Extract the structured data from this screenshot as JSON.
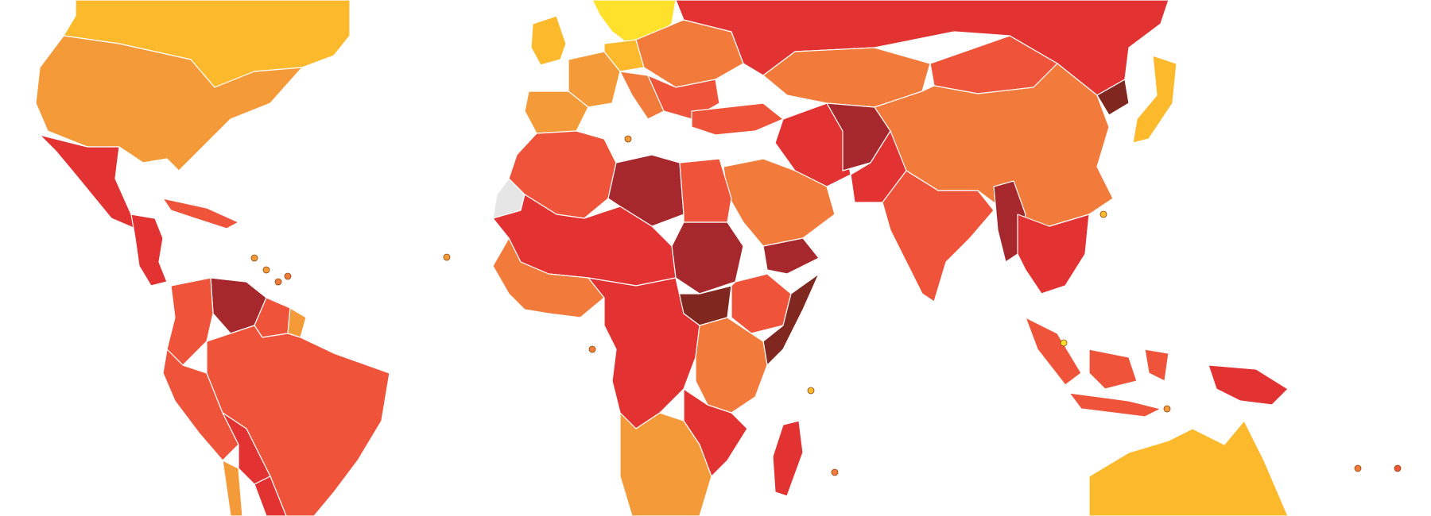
{
  "map": {
    "palette": {
      "very_clean": "#FFE02A",
      "clean": "#FCB92B",
      "fairly_clean": "#F59A38",
      "moderate": "#F27A3B",
      "corrupt": "#EF5339",
      "highly_corrupt": "#E23232",
      "very_highly_corrupt": "#A6282C",
      "most_corrupt": "#80281F",
      "no_data": "#E6E6E6"
    },
    "regions": [
      {
        "id": "canada",
        "band": "clean"
      },
      {
        "id": "usa",
        "band": "fairly_clean"
      },
      {
        "id": "mexico",
        "band": "highly_corrupt"
      },
      {
        "id": "central-america",
        "band": "highly_corrupt"
      },
      {
        "id": "cuba-caribbean",
        "band": "corrupt"
      },
      {
        "id": "venezuela",
        "band": "very_highly_corrupt"
      },
      {
        "id": "colombia",
        "band": "corrupt"
      },
      {
        "id": "guyana-suriname",
        "band": "corrupt"
      },
      {
        "id": "french-guiana",
        "band": "fairly_clean"
      },
      {
        "id": "peru",
        "band": "corrupt"
      },
      {
        "id": "brazil",
        "band": "corrupt"
      },
      {
        "id": "bolivia",
        "band": "highly_corrupt"
      },
      {
        "id": "paraguay",
        "band": "highly_corrupt"
      },
      {
        "id": "chile",
        "band": "fairly_clean"
      },
      {
        "id": "uk-ireland",
        "band": "clean"
      },
      {
        "id": "scandinavia",
        "band": "very_clean"
      },
      {
        "id": "western-europe",
        "band": "fairly_clean"
      },
      {
        "id": "germany",
        "band": "clean"
      },
      {
        "id": "iberia",
        "band": "fairly_clean"
      },
      {
        "id": "italy",
        "band": "moderate"
      },
      {
        "id": "eastern-europe",
        "band": "moderate"
      },
      {
        "id": "balkans",
        "band": "corrupt"
      },
      {
        "id": "russia",
        "band": "highly_corrupt"
      },
      {
        "id": "turkey",
        "band": "corrupt"
      },
      {
        "id": "kazakhstan",
        "band": "moderate"
      },
      {
        "id": "mongolia",
        "band": "corrupt"
      },
      {
        "id": "china",
        "band": "moderate"
      },
      {
        "id": "korea-north",
        "band": "most_corrupt"
      },
      {
        "id": "japan",
        "band": "clean"
      },
      {
        "id": "iran",
        "band": "highly_corrupt"
      },
      {
        "id": "afghanistan",
        "band": "very_highly_corrupt"
      },
      {
        "id": "pakistan",
        "band": "highly_corrupt"
      },
      {
        "id": "india",
        "band": "corrupt"
      },
      {
        "id": "myanmar",
        "band": "very_highly_corrupt"
      },
      {
        "id": "southeast-asia",
        "band": "highly_corrupt"
      },
      {
        "id": "indonesia",
        "band": "corrupt"
      },
      {
        "id": "papua-new-guinea",
        "band": "highly_corrupt"
      },
      {
        "id": "saudi-arabia",
        "band": "moderate"
      },
      {
        "id": "yemen",
        "band": "very_highly_corrupt"
      },
      {
        "id": "north-africa",
        "band": "corrupt"
      },
      {
        "id": "western-sahara",
        "band": "no_data"
      },
      {
        "id": "libya",
        "band": "very_highly_corrupt"
      },
      {
        "id": "egypt",
        "band": "corrupt"
      },
      {
        "id": "sudan",
        "band": "very_highly_corrupt"
      },
      {
        "id": "south-sudan",
        "band": "most_corrupt"
      },
      {
        "id": "somalia",
        "band": "most_corrupt"
      },
      {
        "id": "ethiopia",
        "band": "corrupt"
      },
      {
        "id": "sahel",
        "band": "highly_corrupt"
      },
      {
        "id": "west-africa",
        "band": "moderate"
      },
      {
        "id": "central-africa",
        "band": "highly_corrupt"
      },
      {
        "id": "east-africa",
        "band": "moderate"
      },
      {
        "id": "southern-africa",
        "band": "fairly_clean"
      },
      {
        "id": "mozambique",
        "band": "highly_corrupt"
      },
      {
        "id": "madagascar",
        "band": "highly_corrupt"
      },
      {
        "id": "australia",
        "band": "clean"
      }
    ]
  }
}
